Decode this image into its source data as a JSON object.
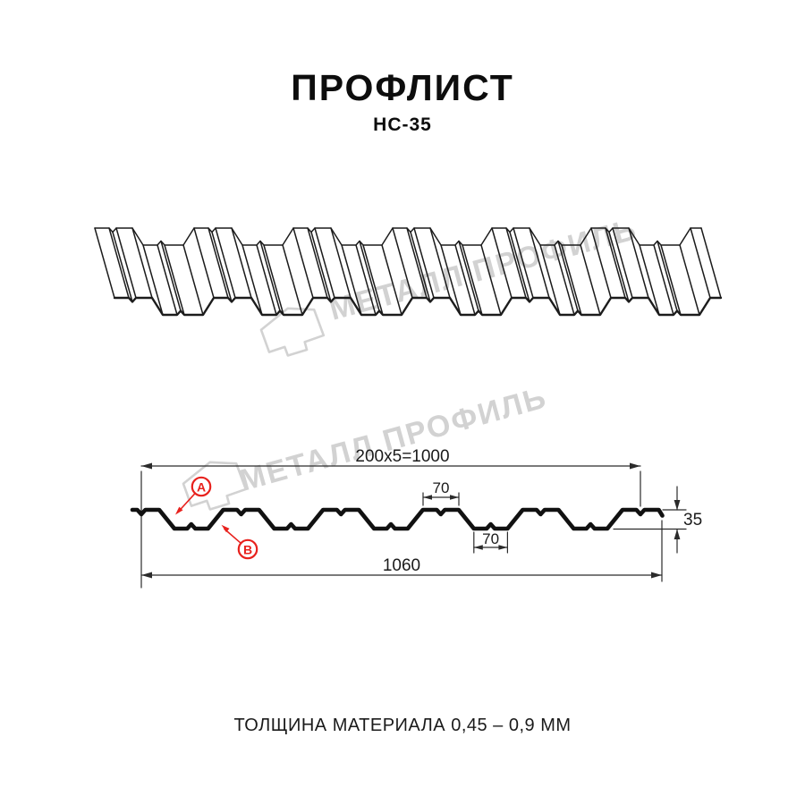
{
  "header": {
    "title": "ПРОФЛИСТ",
    "subtitle": "НС-35"
  },
  "watermark": {
    "text": "МЕТАЛЛ ПРОФИЛЬ",
    "logo": "metall-profil-logo"
  },
  "cross_section": {
    "dim_width_top": "200x5=1000",
    "dim_rib_top": "70",
    "dim_rib_bottom": "70",
    "dim_height": "35",
    "dim_width_total": "1060",
    "label_a": "А",
    "label_b": "В"
  },
  "footer": {
    "note": "ТОЛЩИНА МАТЕРИАЛА 0,45 – 0,9 ММ"
  },
  "colors": {
    "line": "#1a1a1a",
    "dimension_line": "#2b2b2b",
    "accent_red": "#e8211d",
    "watermark_gray": "#d2d2d2",
    "background": "#ffffff"
  }
}
